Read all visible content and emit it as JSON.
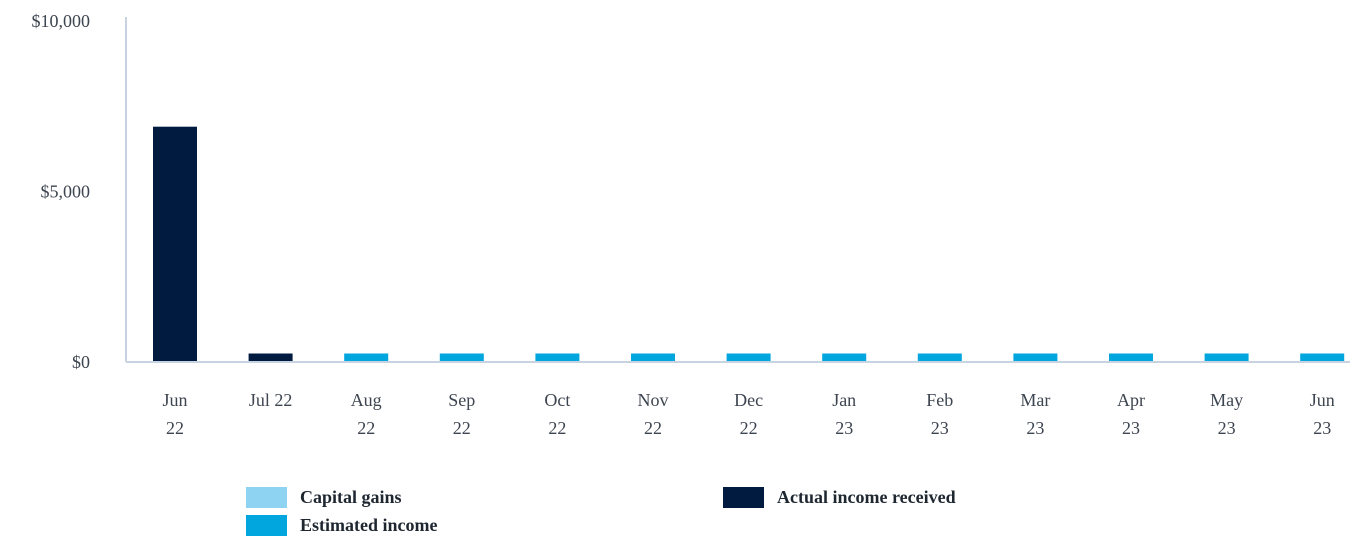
{
  "chart_data": {
    "type": "bar",
    "categories": [
      [
        "Jun",
        "22"
      ],
      [
        "Jul 22"
      ],
      [
        "Aug",
        "22"
      ],
      [
        "Sep",
        "22"
      ],
      [
        "Oct",
        "22"
      ],
      [
        "Nov",
        "22"
      ],
      [
        "Dec",
        "22"
      ],
      [
        "Jan",
        "23"
      ],
      [
        "Feb",
        "23"
      ],
      [
        "Mar",
        "23"
      ],
      [
        "Apr",
        "23"
      ],
      [
        "May",
        "23"
      ],
      [
        "Jun",
        "23"
      ]
    ],
    "series": [
      {
        "name": "Capital gains",
        "color": "#8fd3f3",
        "values": [
          0,
          0,
          0,
          0,
          0,
          0,
          0,
          0,
          0,
          0,
          0,
          0,
          0
        ]
      },
      {
        "name": "Estimated income",
        "color": "#00a6dd",
        "values": [
          0,
          0,
          250,
          250,
          250,
          250,
          250,
          250,
          250,
          250,
          250,
          250,
          250
        ]
      },
      {
        "name": "Actual income received",
        "color": "#001a40",
        "values": [
          6900,
          250,
          0,
          0,
          0,
          0,
          0,
          0,
          0,
          0,
          0,
          0,
          0
        ]
      }
    ],
    "title": "",
    "xlabel": "",
    "ylabel": "",
    "ylim": [
      0,
      10000
    ],
    "y_ticks": [
      0,
      5000,
      10000
    ],
    "y_tick_labels": [
      "$0",
      "$5,000",
      "$10,000"
    ],
    "grid": false,
    "legend_position": "bottom"
  }
}
